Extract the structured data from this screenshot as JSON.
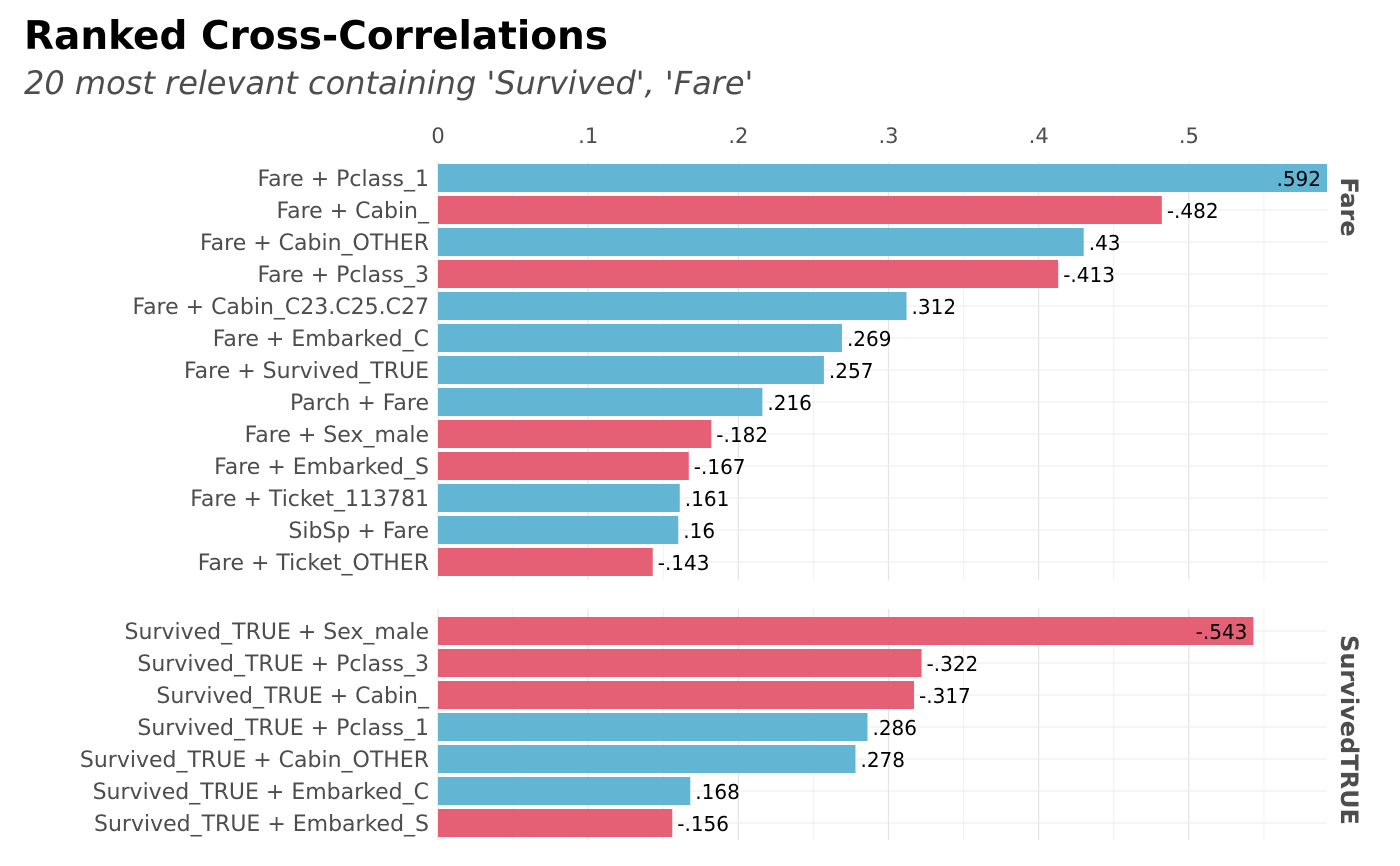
{
  "chart_data": {
    "type": "bar",
    "orientation": "horizontal",
    "title": "Ranked Cross-Correlations",
    "subtitle": "20 most relevant containing 'Survived', 'Fare'",
    "x_ticks": [
      {
        "value": 0,
        "label": "0"
      },
      {
        "value": 0.1,
        "label": ".1"
      },
      {
        "value": 0.2,
        "label": ".2"
      },
      {
        "value": 0.3,
        "label": ".3"
      },
      {
        "value": 0.4,
        "label": ".4"
      },
      {
        "value": 0.5,
        "label": ".5"
      }
    ],
    "xlim": [
      0,
      0.592
    ],
    "grid": true,
    "colors": {
      "positive": "#62b6d4",
      "negative": "#e66075"
    },
    "facets": [
      {
        "label": "Fare",
        "bars": [
          {
            "category": "Fare + Pclass_1",
            "value": 0.592,
            "label": ".592"
          },
          {
            "category": "Fare + Cabin_",
            "value": -0.482,
            "label": "-.482"
          },
          {
            "category": "Fare + Cabin_OTHER",
            "value": 0.43,
            "label": ".43"
          },
          {
            "category": "Fare + Pclass_3",
            "value": -0.413,
            "label": "-.413"
          },
          {
            "category": "Fare + Cabin_C23.C25.C27",
            "value": 0.312,
            "label": ".312"
          },
          {
            "category": "Fare + Embarked_C",
            "value": 0.269,
            "label": ".269"
          },
          {
            "category": "Fare + Survived_TRUE",
            "value": 0.257,
            "label": ".257"
          },
          {
            "category": "Parch + Fare",
            "value": 0.216,
            "label": ".216"
          },
          {
            "category": "Fare + Sex_male",
            "value": -0.182,
            "label": "-.182"
          },
          {
            "category": "Fare + Embarked_S",
            "value": -0.167,
            "label": "-.167"
          },
          {
            "category": "Fare + Ticket_113781",
            "value": 0.161,
            "label": ".161"
          },
          {
            "category": "SibSp + Fare",
            "value": 0.16,
            "label": ".16"
          },
          {
            "category": "Fare + Ticket_OTHER",
            "value": -0.143,
            "label": "-.143"
          }
        ]
      },
      {
        "label": "SurvivedTRUE",
        "bars": [
          {
            "category": "Survived_TRUE + Sex_male",
            "value": -0.543,
            "label": "-.543"
          },
          {
            "category": "Survived_TRUE + Pclass_3",
            "value": -0.322,
            "label": "-.322"
          },
          {
            "category": "Survived_TRUE + Cabin_",
            "value": -0.317,
            "label": "-.317"
          },
          {
            "category": "Survived_TRUE + Pclass_1",
            "value": 0.286,
            "label": ".286"
          },
          {
            "category": "Survived_TRUE + Cabin_OTHER",
            "value": 0.278,
            "label": ".278"
          },
          {
            "category": "Survived_TRUE + Embarked_C",
            "value": 0.168,
            "label": ".168"
          },
          {
            "category": "Survived_TRUE + Embarked_S",
            "value": -0.156,
            "label": "-.156"
          }
        ]
      }
    ]
  }
}
